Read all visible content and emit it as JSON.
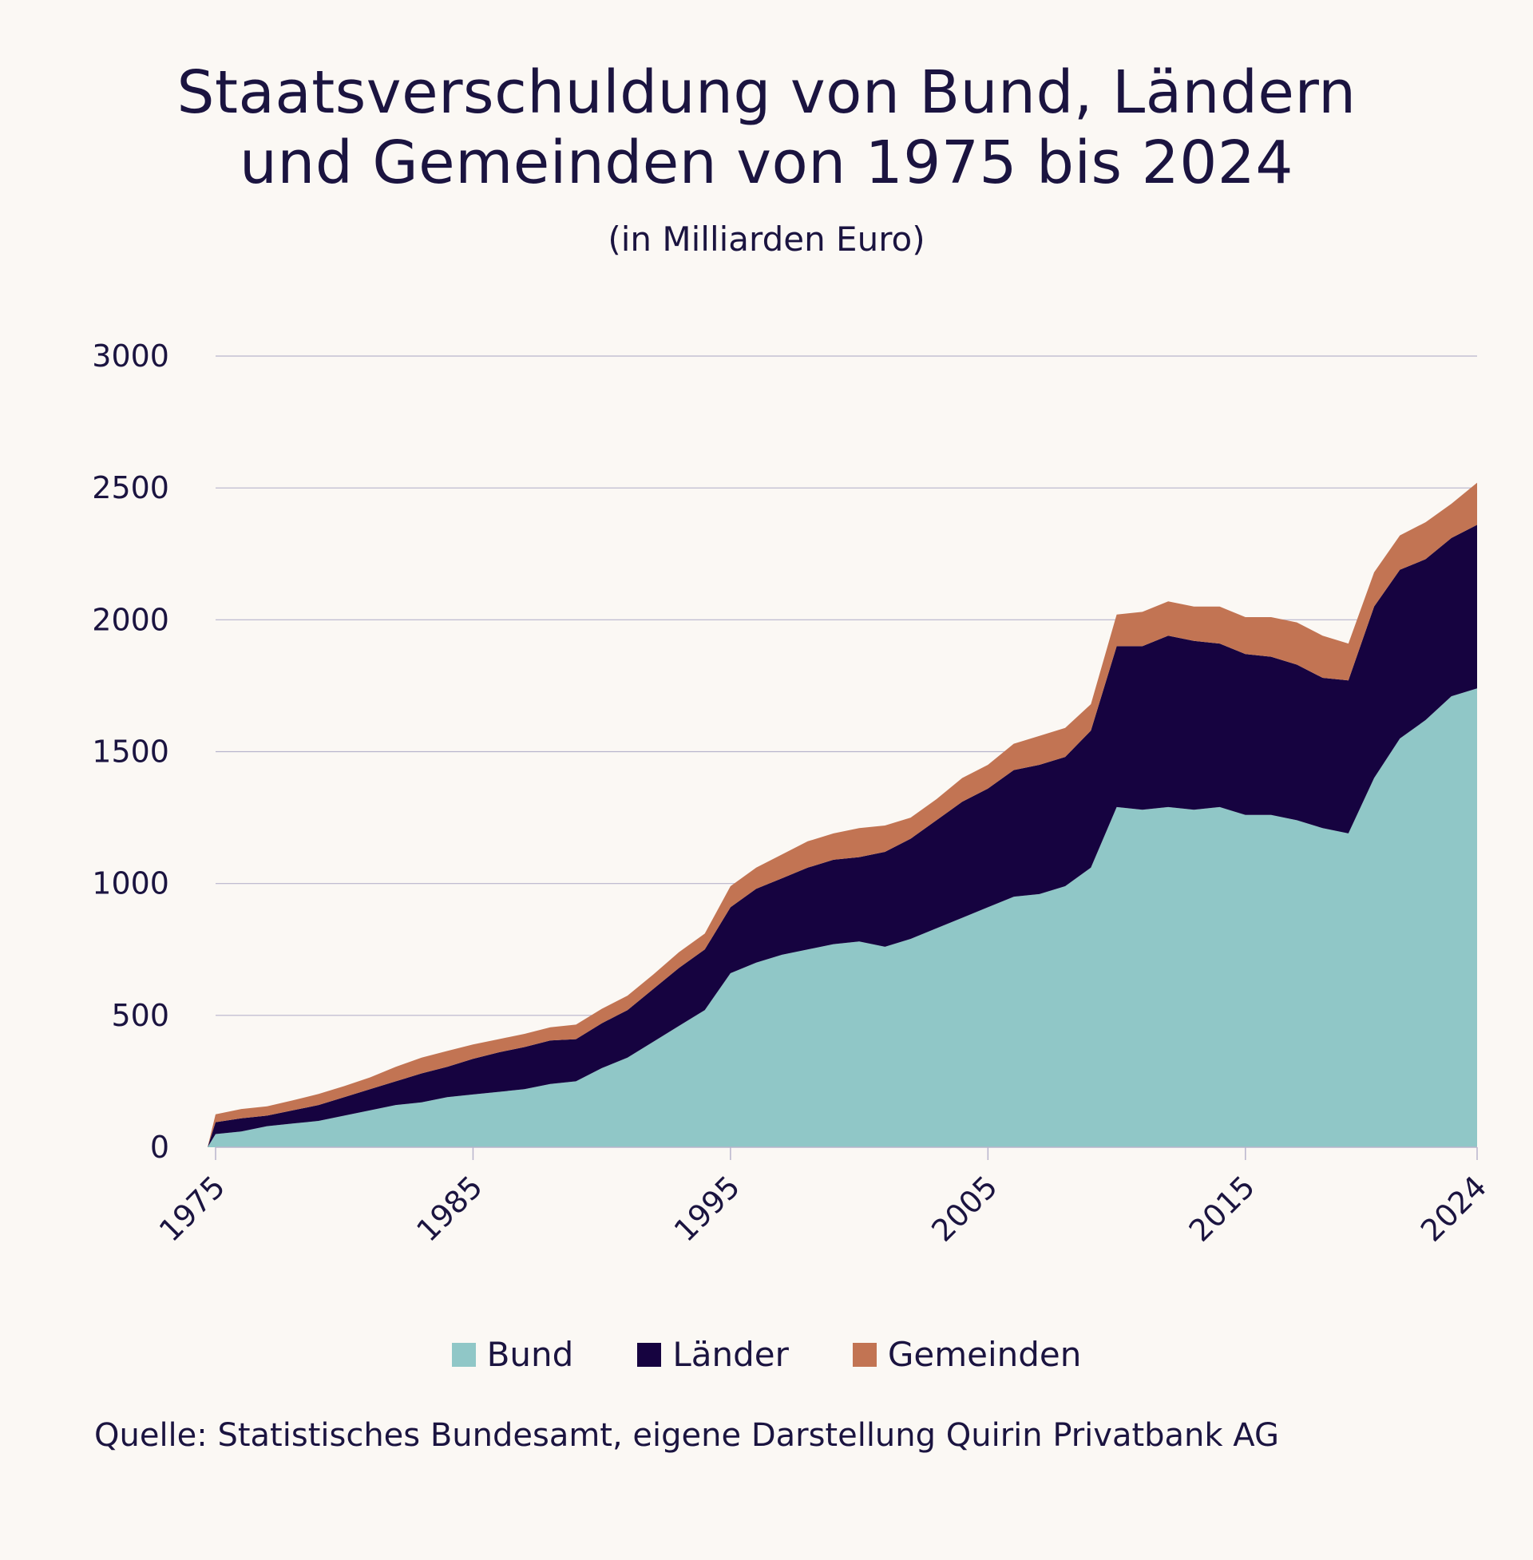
{
  "title_line1": "Staatsverschuldung von Bund, Ländern",
  "title_line2": "und Gemeinden von 1975 bis 2024",
  "subtitle": "(in Milliarden Euro)",
  "source": "Quelle: Statistisches Bundesamt, eigene Darstellung Quirin Privatbank AG",
  "colors": {
    "Bund": "#90c7c7",
    "Länder": "#160340",
    "Gemeinden": "#c27453",
    "grid": "#b8b4cc"
  },
  "chart_data": {
    "type": "area",
    "stacked": true,
    "title": "Staatsverschuldung von Bund, Ländern und Gemeinden von 1975 bis 2024",
    "subtitle": "(in Milliarden Euro)",
    "xlabel": "",
    "ylabel": "",
    "ylim": [
      0,
      3000
    ],
    "yticks": [
      "0",
      "500",
      "1000",
      "1500",
      "2000",
      "2500",
      "3000"
    ],
    "xticks": [
      "1975",
      "1985",
      "1995",
      "2005",
      "2015",
      "2024"
    ],
    "grid": true,
    "legend_position": "bottom",
    "x": [
      1975,
      1976,
      1977,
      1978,
      1979,
      1980,
      1981,
      1982,
      1983,
      1984,
      1985,
      1986,
      1987,
      1988,
      1989,
      1990,
      1991,
      1992,
      1993,
      1994,
      1995,
      1996,
      1997,
      1998,
      1999,
      2000,
      2001,
      2002,
      2003,
      2004,
      2005,
      2006,
      2007,
      2008,
      2009,
      2010,
      2011,
      2012,
      2013,
      2014,
      2015,
      2016,
      2017,
      2018,
      2019,
      2020,
      2021,
      2022,
      2023,
      2024
    ],
    "series": [
      {
        "name": "Bund",
        "values": [
          50,
          60,
          80,
          90,
          100,
          120,
          140,
          160,
          170,
          190,
          200,
          210,
          220,
          240,
          250,
          300,
          340,
          400,
          460,
          520,
          660,
          700,
          730,
          750,
          770,
          780,
          760,
          790,
          830,
          870,
          910,
          950,
          960,
          990,
          1060,
          1290,
          1280,
          1290,
          1280,
          1290,
          1260,
          1260,
          1240,
          1210,
          1190,
          1400,
          1550,
          1620,
          1710,
          1740
        ]
      },
      {
        "name": "Länder",
        "values": [
          45,
          50,
          40,
          50,
          60,
          70,
          80,
          90,
          110,
          115,
          135,
          150,
          160,
          165,
          160,
          170,
          180,
          200,
          220,
          230,
          250,
          280,
          290,
          310,
          320,
          320,
          360,
          380,
          410,
          440,
          450,
          480,
          490,
          490,
          520,
          610,
          620,
          650,
          640,
          620,
          610,
          600,
          590,
          570,
          580,
          650,
          640,
          610,
          600,
          620
        ]
      },
      {
        "name": "Gemeinden",
        "values": [
          30,
          35,
          35,
          38,
          42,
          42,
          45,
          55,
          60,
          60,
          55,
          50,
          50,
          50,
          55,
          55,
          55,
          55,
          60,
          60,
          80,
          80,
          90,
          100,
          100,
          110,
          100,
          80,
          80,
          90,
          90,
          100,
          110,
          110,
          100,
          120,
          130,
          130,
          130,
          140,
          140,
          150,
          160,
          160,
          140,
          130,
          130,
          140,
          130,
          160
        ]
      }
    ]
  }
}
